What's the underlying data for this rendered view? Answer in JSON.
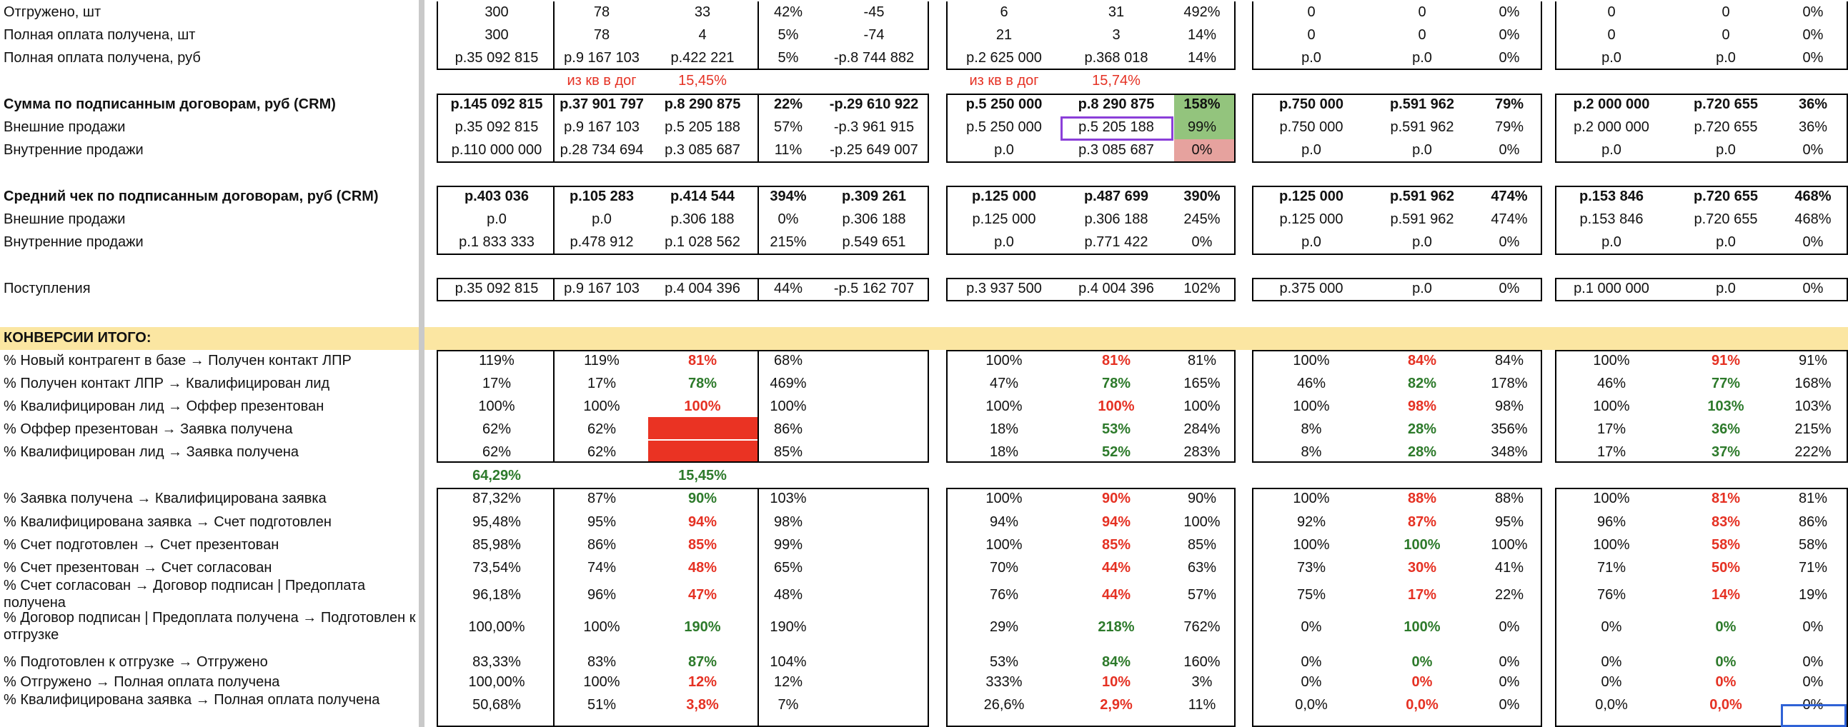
{
  "colors": {
    "band": "#fbe6a2",
    "red_fill": "#ea3323",
    "green_fill": "#93c47d",
    "pink_fill": "#e6a29e",
    "red_text": "#e53123",
    "green_text": "#2d7a2b",
    "purple_sel": "#8b3fd9",
    "blue_sel": "#2f62d6"
  },
  "section_header": "КОНВЕРСИИ ИТОГО:",
  "rows": [
    {
      "label": "Отгружено, шт",
      "b1": [
        "300",
        "78",
        "33",
        "42%",
        "-45"
      ],
      "b2": [
        "6",
        "31",
        "492%"
      ],
      "b3": [
        "0",
        "0",
        "0%"
      ],
      "b4": [
        "0",
        "0",
        "0%"
      ]
    },
    {
      "label": "Полная оплата получена, шт",
      "b1": [
        "300",
        "78",
        "4",
        "5%",
        "-74"
      ],
      "b2": [
        "21",
        "3",
        "14%"
      ],
      "b3": [
        "0",
        "0",
        "0%"
      ],
      "b4": [
        "0",
        "0",
        "0%"
      ]
    },
    {
      "label": "Полная оплата получена, руб",
      "b1": [
        "р.35 092 815",
        "р.9 167 103",
        "р.422 221",
        "5%",
        "-р.8 744 882"
      ],
      "b2": [
        "р.2 625 000",
        "р.368 018",
        "14%"
      ],
      "b3": [
        "р.0",
        "р.0",
        "0%"
      ],
      "b4": [
        "р.0",
        "р.0",
        "0%"
      ]
    },
    {
      "label": "",
      "notes": {
        "b1_a": "из кв в дог",
        "b1_b": "15,45%",
        "b2_a": "из кв в дог",
        "b2_b": "15,74%"
      }
    },
    {
      "label": "Сумма по подписанным договорам, руб (CRM)",
      "bold": true,
      "b1": [
        "р.145 092 815",
        "р.37 901 797",
        "р.8 290 875",
        "22%",
        "-р.29 610 922"
      ],
      "b2": [
        "р.5 250 000",
        "р.8 290 875",
        "158%"
      ],
      "b3": [
        "р.750 000",
        "р.591 962",
        "79%"
      ],
      "b4": [
        "р.2 000 000",
        "р.720 655",
        "36%"
      ]
    },
    {
      "label": "Внешние продажи",
      "b1": [
        "р.35 092 815",
        "р.9 167 103",
        "р.5 205 188",
        "57%",
        "-р.3 961 915"
      ],
      "b2": [
        "р.5 250 000",
        "р.5 205 188",
        "99%"
      ],
      "b3": [
        "р.750 000",
        "р.591 962",
        "79%"
      ],
      "b4": [
        "р.2 000 000",
        "р.720 655",
        "36%"
      ]
    },
    {
      "label": "Внутренние продажи",
      "b1": [
        "р.110 000 000",
        "р.28 734 694",
        "р.3 085 687",
        "11%",
        "-р.25 649 007"
      ],
      "b2": [
        "р.0",
        "р.3 085 687",
        "0%"
      ],
      "b3": [
        "р.0",
        "р.0",
        "0%"
      ],
      "b4": [
        "р.0",
        "р.0",
        "0%"
      ]
    },
    {
      "label": ""
    },
    {
      "label": "Средний чек по подписанным договорам, руб (CRM)",
      "bold": true,
      "b1": [
        "р.403 036",
        "р.105 283",
        "р.414 544",
        "394%",
        "р.309 261"
      ],
      "b2": [
        "р.125 000",
        "р.487 699",
        "390%"
      ],
      "b3": [
        "р.125 000",
        "р.591 962",
        "474%"
      ],
      "b4": [
        "р.153 846",
        "р.720 655",
        "468%"
      ]
    },
    {
      "label": "Внешние продажи",
      "b1": [
        "р.0",
        "р.0",
        "р.306 188",
        "0%",
        "р.306 188"
      ],
      "b2": [
        "р.125 000",
        "р.306 188",
        "245%"
      ],
      "b3": [
        "р.125 000",
        "р.591 962",
        "474%"
      ],
      "b4": [
        "р.153 846",
        "р.720 655",
        "468%"
      ]
    },
    {
      "label": "Внутренние продажи",
      "b1": [
        "р.1 833 333",
        "р.478 912",
        "р.1 028 562",
        "215%",
        "р.549 651"
      ],
      "b2": [
        "р.0",
        "р.771 422",
        "0%"
      ],
      "b3": [
        "р.0",
        "р.0",
        "0%"
      ],
      "b4": [
        "р.0",
        "р.0",
        "0%"
      ]
    },
    {
      "label": ""
    },
    {
      "label": "Поступления",
      "b1": [
        "р.35 092 815",
        "р.9 167 103",
        "р.4 004 396",
        "44%",
        "-р.5 162 707"
      ],
      "b2": [
        "р.3 937 500",
        "р.4 004 396",
        "102%"
      ],
      "b3": [
        "р.375 000",
        "р.0",
        "0%"
      ],
      "b4": [
        "р.1 000 000",
        "р.0",
        "0%"
      ]
    },
    {
      "label": ""
    },
    {
      "label": "КОНВЕРСИИ ИТОГО:",
      "header": true
    },
    {
      "label": "% Новый контрагент в базе → Получен контакт ЛПР",
      "b1": [
        "119%",
        "119%",
        "81%",
        "68%",
        ""
      ],
      "b2": [
        "100%",
        "81%",
        "81%"
      ],
      "b3": [
        "100%",
        "84%",
        "84%"
      ],
      "b4": [
        "100%",
        "91%",
        "91%"
      ]
    },
    {
      "label": "% Получен контакт ЛПР → Квалифицирован лид",
      "b1": [
        "17%",
        "17%",
        "78%",
        "469%",
        ""
      ],
      "b2": [
        "47%",
        "78%",
        "165%"
      ],
      "b3": [
        "46%",
        "82%",
        "178%"
      ],
      "b4": [
        "46%",
        "77%",
        "168%"
      ]
    },
    {
      "label": "% Квалифицирован лид → Оффер презентован",
      "b1": [
        "100%",
        "100%",
        "100%",
        "100%",
        ""
      ],
      "b2": [
        "100%",
        "100%",
        "100%"
      ],
      "b3": [
        "100%",
        "98%",
        "98%"
      ],
      "b4": [
        "100%",
        "103%",
        "103%"
      ]
    },
    {
      "label": "% Оффер презентован → Заявка получена",
      "b1": [
        "62%",
        "62%",
        "",
        "86%",
        ""
      ],
      "b2": [
        "18%",
        "53%",
        "284%"
      ],
      "b3": [
        "8%",
        "28%",
        "356%"
      ],
      "b4": [
        "17%",
        "36%",
        "215%"
      ]
    },
    {
      "label": "% Квалифицирован лид → Заявка получена",
      "b1": [
        "62%",
        "62%",
        "",
        "85%",
        ""
      ],
      "b2": [
        "18%",
        "52%",
        "283%"
      ],
      "b3": [
        "8%",
        "28%",
        "348%"
      ],
      "b4": [
        "17%",
        "37%",
        "222%"
      ]
    },
    {
      "label": "",
      "notes": {
        "sub_a": "64,29%",
        "sub_b": "15,45%"
      }
    },
    {
      "label": "% Заявка получена → Квалифицирована заявка",
      "b1": [
        "87,32%",
        "87%",
        "90%",
        "103%",
        ""
      ],
      "b2": [
        "100%",
        "90%",
        "90%"
      ],
      "b3": [
        "100%",
        "88%",
        "88%"
      ],
      "b4": [
        "100%",
        "81%",
        "81%"
      ]
    },
    {
      "label": "% Квалифицирована заявка → Счет подготовлен",
      "b1": [
        "95,48%",
        "95%",
        "94%",
        "98%",
        ""
      ],
      "b2": [
        "94%",
        "94%",
        "100%"
      ],
      "b3": [
        "92%",
        "87%",
        "95%"
      ],
      "b4": [
        "96%",
        "83%",
        "86%"
      ]
    },
    {
      "label": "% Счет подготовлен → Счет презентован",
      "b1": [
        "85,98%",
        "86%",
        "85%",
        "99%",
        ""
      ],
      "b2": [
        "100%",
        "85%",
        "85%"
      ],
      "b3": [
        "100%",
        "100%",
        "100%"
      ],
      "b4": [
        "100%",
        "58%",
        "58%"
      ]
    },
    {
      "label": "% Счет презентован → Счет согласован",
      "b1": [
        "73,54%",
        "74%",
        "48%",
        "65%",
        ""
      ],
      "b2": [
        "70%",
        "44%",
        "63%"
      ],
      "b3": [
        "73%",
        "30%",
        "41%"
      ],
      "b4": [
        "71%",
        "50%",
        "71%"
      ]
    },
    {
      "label": "% Счет согласован → Договор подписан | Предоплата получена",
      "b1": [
        "96,18%",
        "96%",
        "47%",
        "48%",
        ""
      ],
      "b2": [
        "76%",
        "44%",
        "57%"
      ],
      "b3": [
        "75%",
        "17%",
        "22%"
      ],
      "b4": [
        "76%",
        "14%",
        "19%"
      ]
    },
    {
      "label": "% Договор подписан | Предоплата получена → Подготовлен к отгрузке",
      "b1": [
        "100,00%",
        "100%",
        "190%",
        "190%",
        ""
      ],
      "b2": [
        "29%",
        "218%",
        "762%"
      ],
      "b3": [
        "0%",
        "100%",
        "0%"
      ],
      "b4": [
        "0%",
        "0%",
        "0%"
      ]
    },
    {
      "label": "% Подготовлен к отгрузке → Отгружено",
      "b1": [
        "83,33%",
        "83%",
        "87%",
        "104%",
        ""
      ],
      "b2": [
        "53%",
        "84%",
        "160%"
      ],
      "b3": [
        "0%",
        "0%",
        "0%"
      ],
      "b4": [
        "0%",
        "0%",
        "0%"
      ]
    },
    {
      "label": "% Отгружено → Полная оплата получена",
      "b1": [
        "100,00%",
        "100%",
        "12%",
        "12%",
        ""
      ],
      "b2": [
        "333%",
        "10%",
        "3%"
      ],
      "b3": [
        "0%",
        "0%",
        "0%"
      ],
      "b4": [
        "0%",
        "0%",
        "0%"
      ]
    },
    {
      "label": "% Квалифицирована заявка → Полная оплата получена",
      "b1": [
        "50,68%",
        "51%",
        "3,8%",
        "7%",
        ""
      ],
      "b2": [
        "26,6%",
        "2,9%",
        "11%"
      ],
      "b3": [
        "0,0%",
        "0,0%",
        "0%"
      ],
      "b4": [
        "0,0%",
        "0,0%",
        "0%"
      ]
    }
  ]
}
